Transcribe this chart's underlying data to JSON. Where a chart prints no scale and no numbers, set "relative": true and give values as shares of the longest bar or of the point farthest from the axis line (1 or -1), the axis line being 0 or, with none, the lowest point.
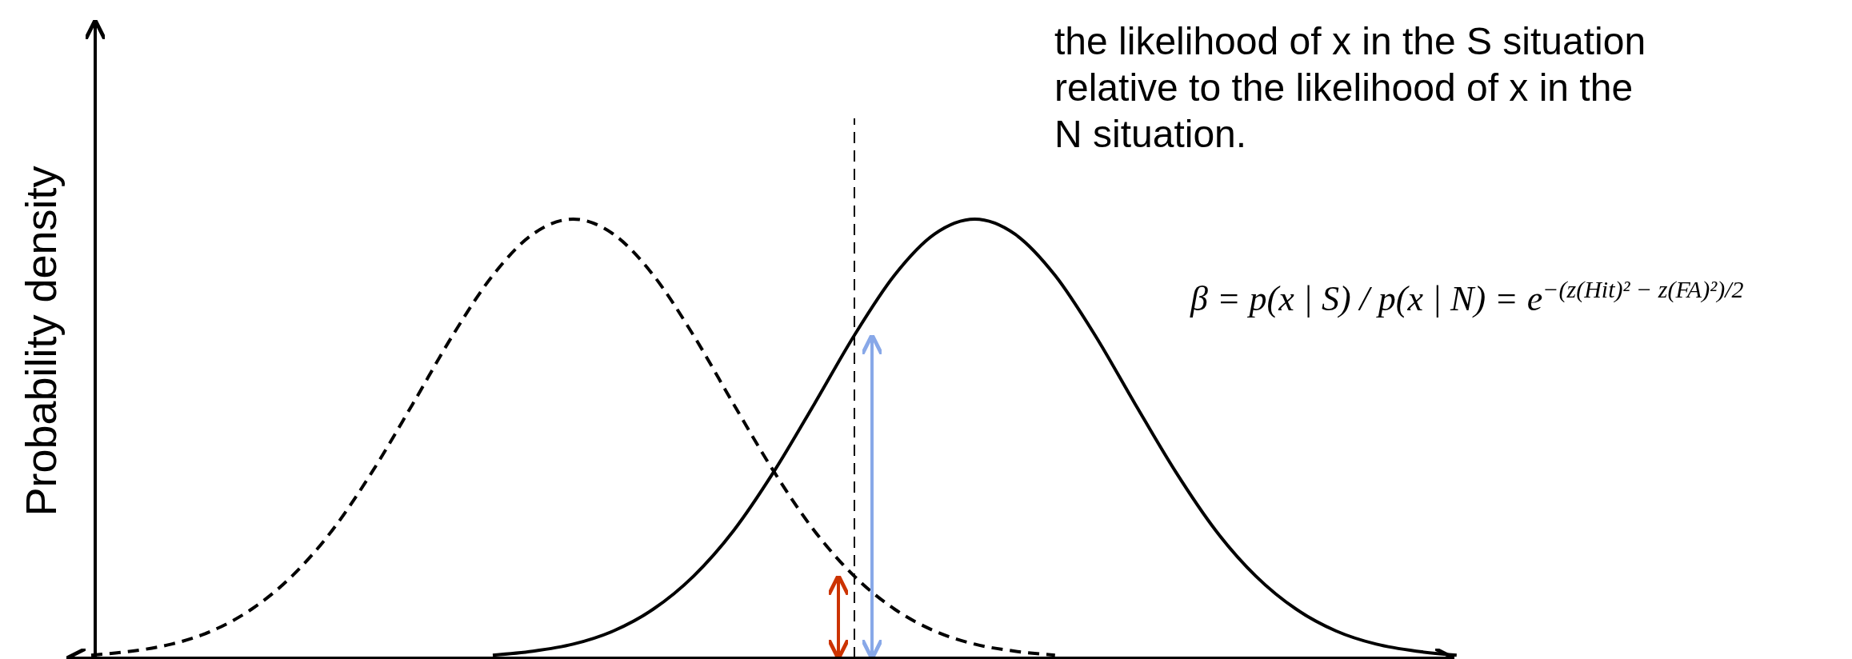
{
  "chart_data": {
    "type": "line",
    "relative": true,
    "ylabel": "Probability density",
    "categories": [
      null,
      null,
      null,
      null,
      null,
      null,
      null,
      null,
      null,
      null,
      null,
      null,
      null,
      null,
      null,
      null,
      null,
      null,
      null,
      null,
      null,
      null,
      null,
      null,
      null,
      null,
      null,
      null,
      null,
      null,
      null,
      null,
      null,
      null,
      null
    ],
    "series": [
      {
        "color": "#000000",
        "line_style": "dashed",
        "values": [
          0.007,
          0.016,
          0.032,
          0.062,
          0.112,
          0.187,
          0.291,
          0.425,
          0.578,
          0.735,
          0.872,
          0.966,
          1,
          0.966,
          0.872,
          0.735,
          0.578,
          0.425,
          0.291,
          0.187,
          0.112,
          0.062,
          0.032,
          0.016,
          0.007,
          null,
          null,
          null,
          null,
          null,
          null,
          null,
          null,
          null,
          null
        ]
      },
      {
        "color": "#000000",
        "line_style": "solid",
        "values": [
          null,
          null,
          null,
          null,
          null,
          null,
          null,
          null,
          null,
          null,
          0.007,
          0.016,
          0.032,
          0.062,
          0.112,
          0.187,
          0.291,
          0.425,
          0.578,
          0.735,
          0.872,
          0.966,
          1,
          0.966,
          0.872,
          0.735,
          0.578,
          0.425,
          0.291,
          0.187,
          0.112,
          0.062,
          0.032,
          0.016,
          0.007
        ]
      }
    ],
    "annotations": [
      "the likelihood of x in the S situation relative to the likelihood of x in the N situation.",
      "β = p(x | S) / p(x | N) = e$^{−(z(Hit)² − z(FA)²)/2}$"
    ]
  }
}
